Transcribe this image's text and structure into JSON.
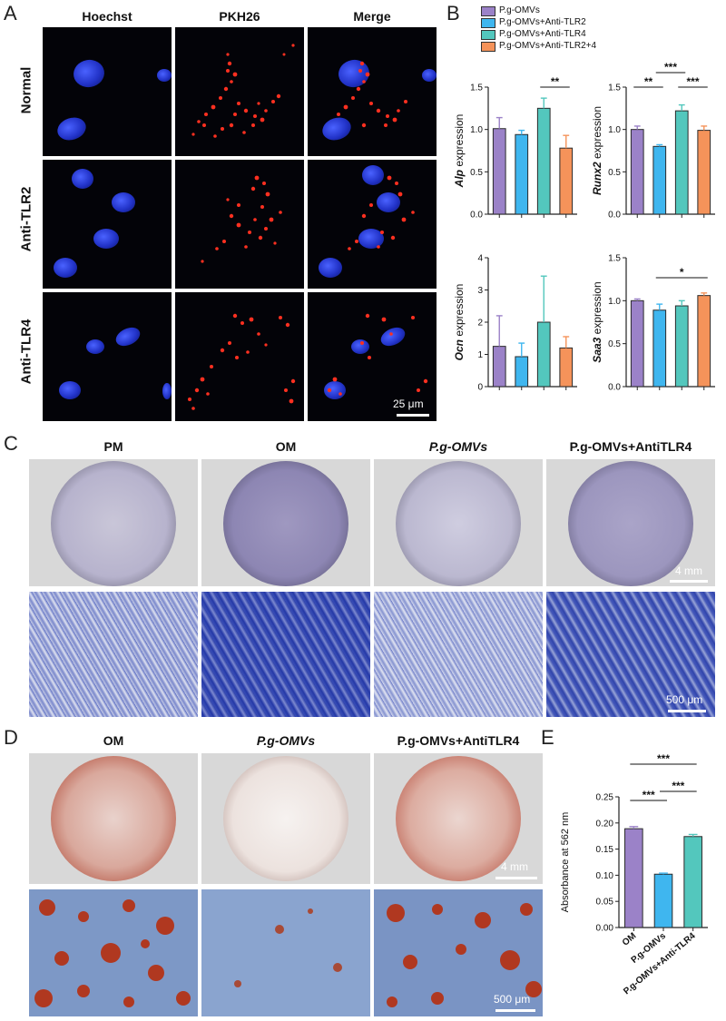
{
  "panels": {
    "A": "A",
    "B": "B",
    "C": "C",
    "D": "D",
    "E": "E"
  },
  "panelA": {
    "columns": [
      "Hoechst",
      "PKH26",
      "Merge"
    ],
    "rows": [
      "Normal",
      "Anti-TLR2",
      "Anti-TLR4"
    ],
    "scalebar": "25 μm"
  },
  "panelB": {
    "legend": [
      {
        "label": "P.g-OMVs",
        "color": "#9b82c8"
      },
      {
        "label": "P.g-OMVs+Anti-TLR2",
        "color": "#3fb6ef"
      },
      {
        "label": "P.g-OMVs+Anti-TLR4",
        "color": "#53c7bd"
      },
      {
        "label": "P.g-OMVs+Anti-TLR2+4",
        "color": "#f5935a"
      }
    ]
  },
  "panelC": {
    "columns": [
      "PM",
      "OM",
      "P.g-OMVs",
      "P.g-OMVs+AntiTLR4"
    ],
    "scalebar_top": "4 mm",
    "scalebar_bottom": "500 μm"
  },
  "panelD": {
    "columns": [
      "OM",
      "P.g-OMVs",
      "P.g-OMVs+AntiTLR4"
    ],
    "scalebar_top": "4 mm",
    "scalebar_bottom": "500 μm"
  },
  "chart_data": [
    {
      "type": "bar",
      "panel": "B",
      "categories": [
        "P.g-OMVs",
        "P.g-OMVs+Anti-TLR2",
        "P.g-OMVs+Anti-TLR4",
        "P.g-OMVs+Anti-TLR2+4"
      ],
      "values": [
        1.01,
        0.94,
        1.25,
        0.78
      ],
      "errors": [
        0.13,
        0.05,
        0.12,
        0.15
      ],
      "ylabel": "Alp expression",
      "ylim": [
        0,
        1.5
      ],
      "yticks": [
        "0.0",
        "0.5",
        "1.0",
        "1.5"
      ],
      "significance": [
        {
          "pair": [
            2,
            3
          ],
          "label": "**"
        }
      ],
      "colors": [
        "#9b82c8",
        "#3fb6ef",
        "#53c7bd",
        "#f5935a"
      ]
    },
    {
      "type": "bar",
      "panel": "B",
      "categories": [
        "P.g-OMVs",
        "P.g-OMVs+Anti-TLR2",
        "P.g-OMVs+Anti-TLR4",
        "P.g-OMVs+Anti-TLR2+4"
      ],
      "values": [
        1.0,
        0.8,
        1.22,
        0.99
      ],
      "errors": [
        0.04,
        0.02,
        0.07,
        0.05
      ],
      "ylabel": "Runx2 expression",
      "ylim": [
        0,
        1.5
      ],
      "yticks": [
        "0.0",
        "0.5",
        "1.0",
        "1.5"
      ],
      "significance": [
        {
          "pair": [
            0,
            1
          ],
          "label": "**"
        },
        {
          "pair": [
            2,
            3
          ],
          "label": "***"
        },
        {
          "pair": [
            1,
            2
          ],
          "label": "***"
        },
        {
          "pair": [
            0,
            2
          ],
          "label": "***"
        },
        {
          "pair": [
            1,
            3
          ],
          "label": "**"
        }
      ],
      "colors": [
        "#9b82c8",
        "#3fb6ef",
        "#53c7bd",
        "#f5935a"
      ]
    },
    {
      "type": "bar",
      "panel": "B",
      "categories": [
        "P.g-OMVs",
        "P.g-OMVs+Anti-TLR2",
        "P.g-OMVs+Anti-TLR4",
        "P.g-OMVs+Anti-TLR2+4"
      ],
      "values": [
        1.25,
        0.93,
        2.0,
        1.2
      ],
      "errors": [
        0.95,
        0.42,
        1.43,
        0.35
      ],
      "ylabel": "Ocn expression",
      "ylim": [
        0,
        4
      ],
      "yticks": [
        "0",
        "1",
        "2",
        "3",
        "4"
      ],
      "significance": [],
      "colors": [
        "#9b82c8",
        "#3fb6ef",
        "#53c7bd",
        "#f5935a"
      ]
    },
    {
      "type": "bar",
      "panel": "B",
      "categories": [
        "P.g-OMVs",
        "P.g-OMVs+Anti-TLR2",
        "P.g-OMVs+Anti-TLR4",
        "P.g-OMVs+Anti-TLR2+4"
      ],
      "values": [
        1.0,
        0.89,
        0.94,
        1.06
      ],
      "errors": [
        0.02,
        0.07,
        0.06,
        0.03
      ],
      "ylabel": "Saa3 expression",
      "ylim": [
        0,
        1.5
      ],
      "yticks": [
        "0.0",
        "0.5",
        "1.0",
        "1.5"
      ],
      "significance": [
        {
          "pair": [
            1,
            3
          ],
          "label": "*"
        }
      ],
      "colors": [
        "#9b82c8",
        "#3fb6ef",
        "#53c7bd",
        "#f5935a"
      ]
    },
    {
      "type": "bar",
      "panel": "E",
      "categories": [
        "OM",
        "P.g-OMVs",
        "P.g-OMVs+Anti-TLR4"
      ],
      "values": [
        0.189,
        0.102,
        0.174
      ],
      "errors": [
        0.004,
        0.002,
        0.004
      ],
      "ylabel": "Absorbance at 562 nm",
      "ylim": [
        0,
        0.25
      ],
      "yticks": [
        "0.00",
        "0.05",
        "0.10",
        "0.15",
        "0.20",
        "0.25"
      ],
      "significance": [
        {
          "pair": [
            0,
            1
          ],
          "label": "***"
        },
        {
          "pair": [
            1,
            2
          ],
          "label": "***"
        },
        {
          "pair": [
            0,
            2
          ],
          "label": "***"
        }
      ],
      "colors": [
        "#9b82c8",
        "#3fb6ef",
        "#53c7bd"
      ]
    }
  ]
}
